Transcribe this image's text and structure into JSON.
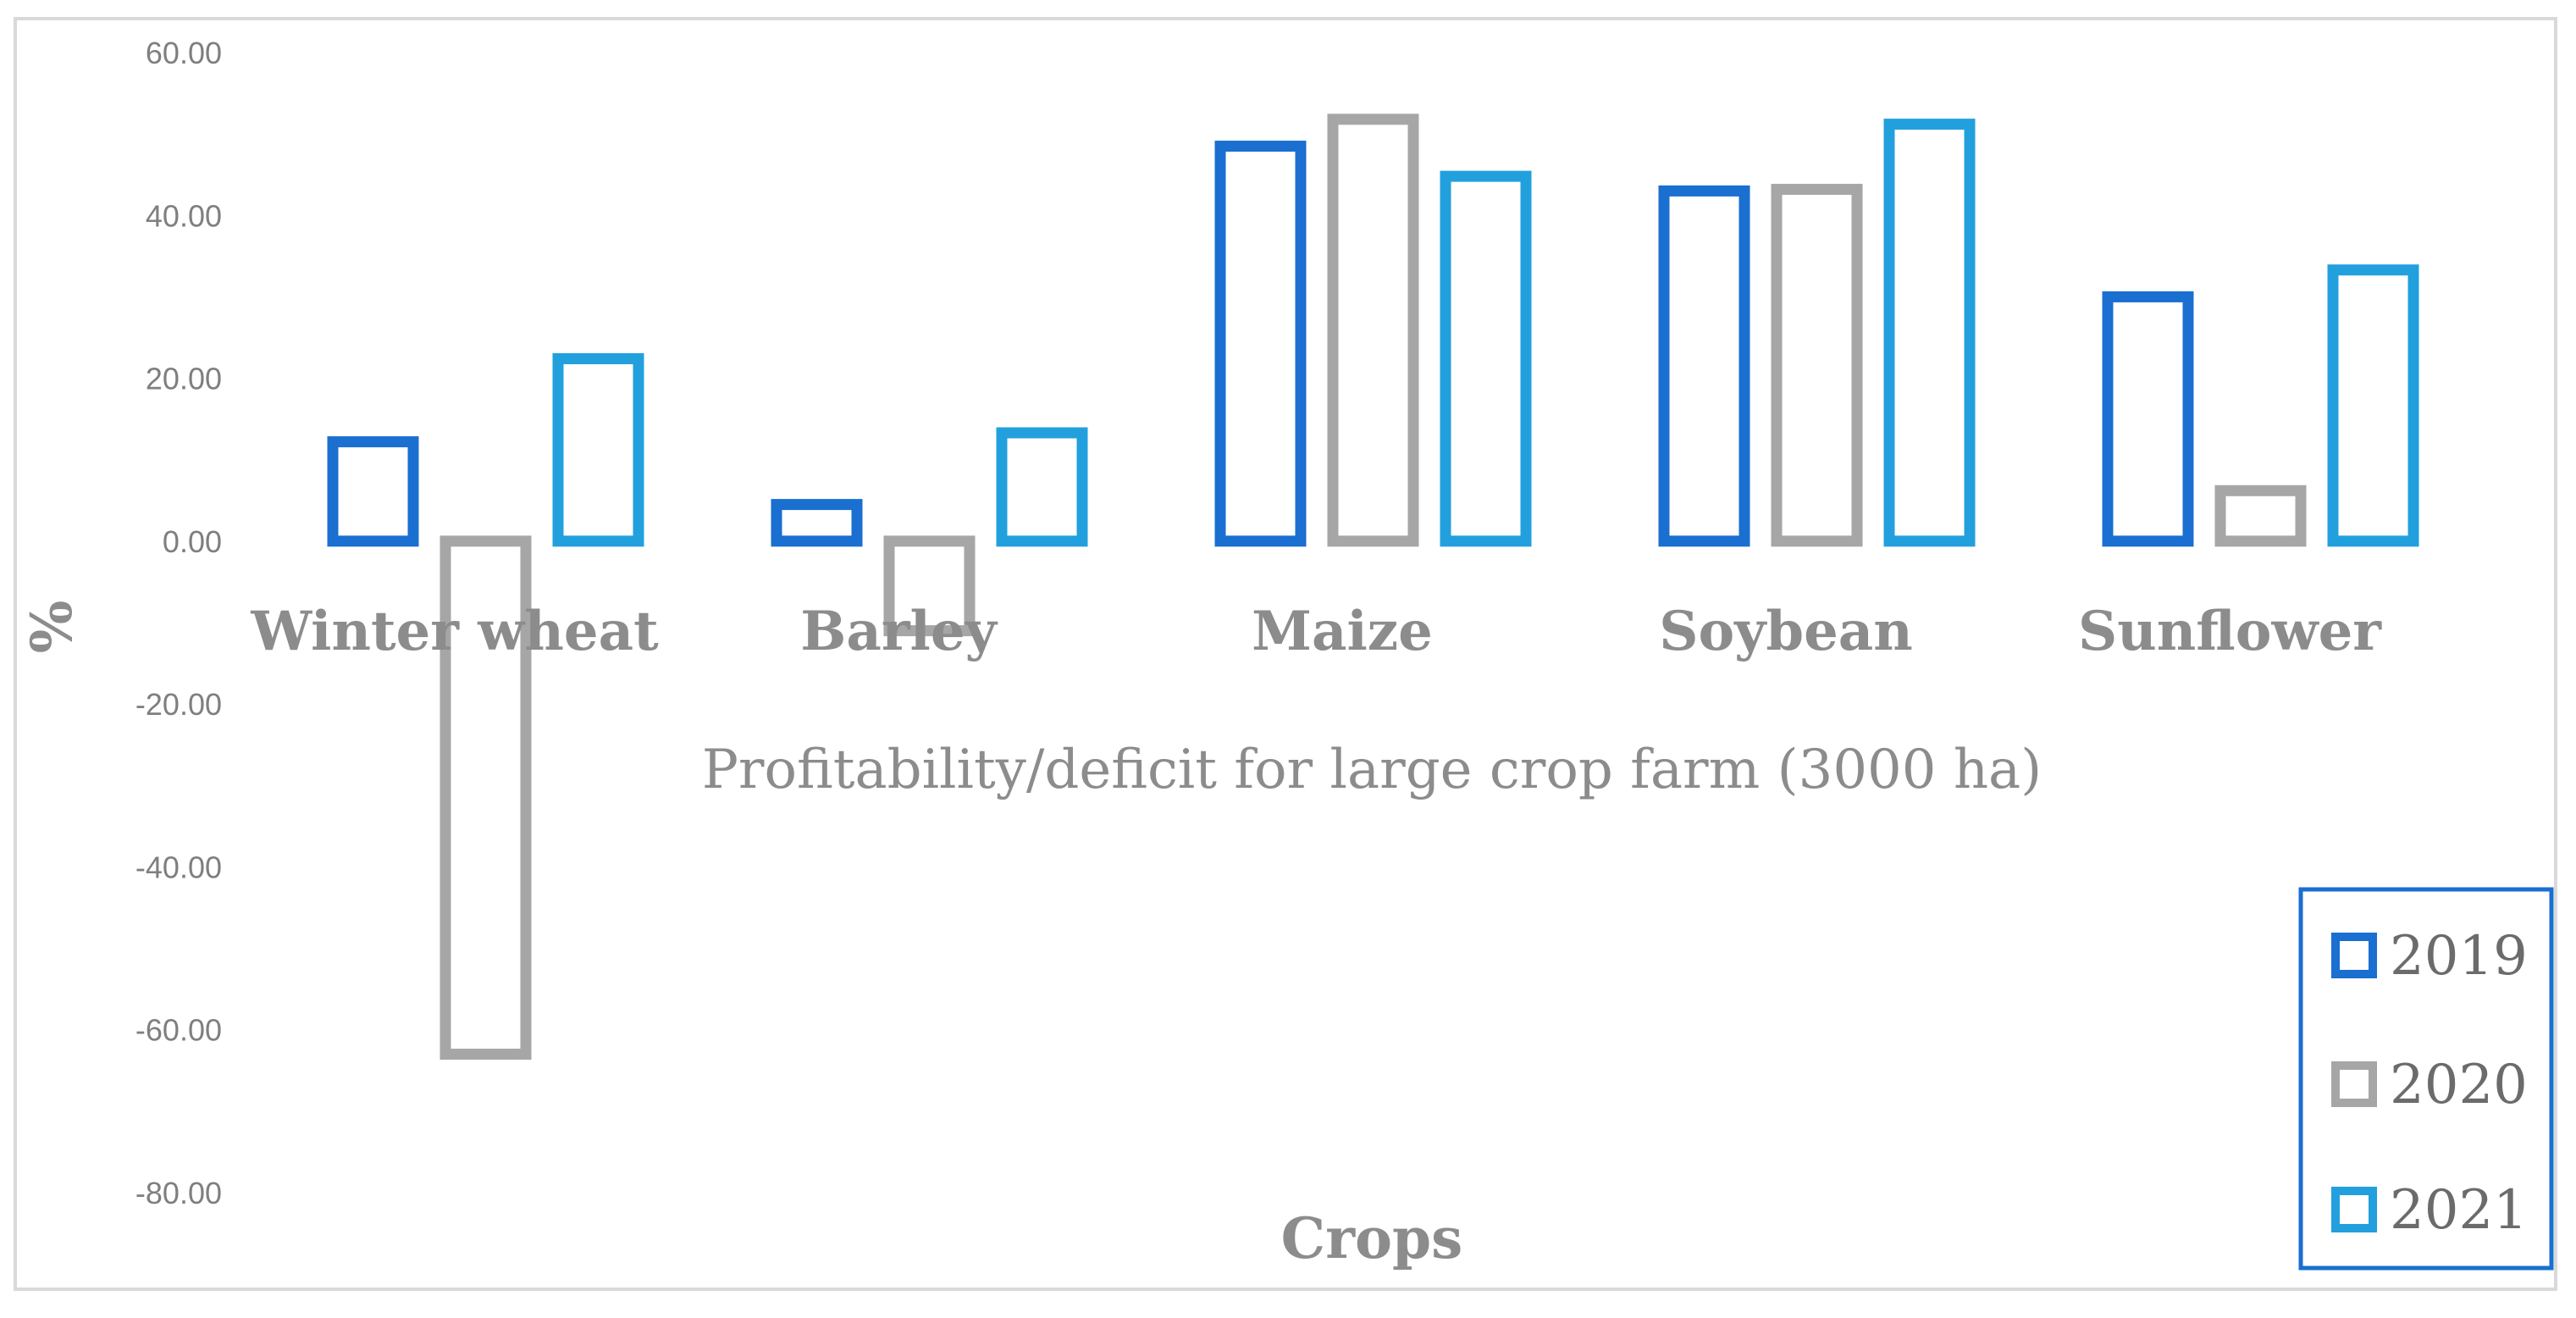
{
  "chart_data": {
    "type": "bar",
    "title": "Profitability/deficit for large crop farm (3000 ha)",
    "xlabel": "Crops",
    "ylabel": "%",
    "categories": [
      "Winter wheat",
      "Barley",
      "Maize",
      "Soybean",
      "Sunflower"
    ],
    "series": [
      {
        "name": "2019",
        "color": "#1a6fd0",
        "values": [
          12.2,
          4.5,
          48.5,
          43.0,
          30.0
        ]
      },
      {
        "name": "2020",
        "color": "#a6a6a6",
        "values": [
          -63.0,
          -11.0,
          51.8,
          43.2,
          6.2
        ]
      },
      {
        "name": "2021",
        "color": "#22a0de",
        "values": [
          22.4,
          13.3,
          44.8,
          51.2,
          33.3
        ]
      }
    ],
    "ylim": [
      -80,
      60
    ],
    "yticks": [
      "60.00",
      "40.00",
      "20.00",
      "0.00",
      "-20.00",
      "-40.00",
      "-60.00",
      "-80.00"
    ],
    "ytick_values": [
      60,
      40,
      20,
      0,
      -20,
      -40,
      -60,
      -80
    ],
    "grid": false,
    "legend_position": "bottom-right"
  }
}
